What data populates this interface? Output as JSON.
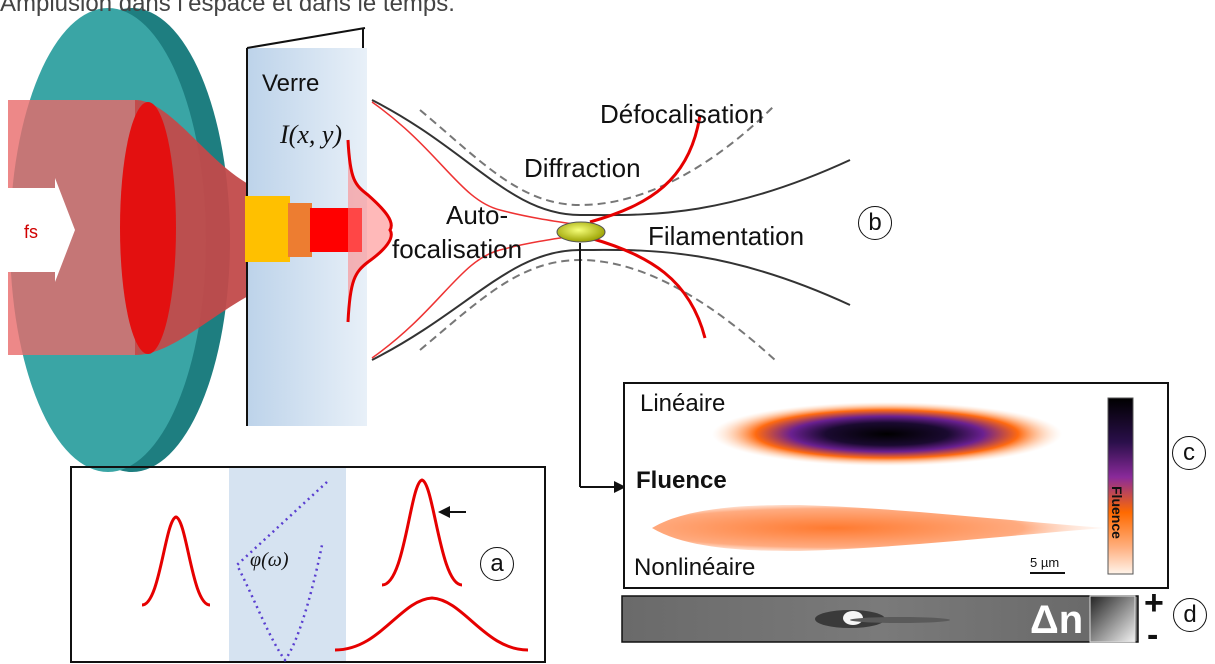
{
  "header_text": "Amplusion dans l’espace et dans le temps.",
  "pulse_label": "fs",
  "glass_label": "Verre",
  "intensity_label": "I(x, y)",
  "effects": {
    "defocus": "Défocalisation",
    "diffraction": "Diffraction",
    "selffocus_1": "Auto-",
    "selffocus_2": "focalisation",
    "filamentation": "Filamentation"
  },
  "panel_labels": {
    "a": "a",
    "b": "b",
    "c": "c",
    "d": "d"
  },
  "panel_a": {
    "phase_label": "φ(ω)"
  },
  "panel_c": {
    "top_label": "Linéaire",
    "middle_label": "Fluence",
    "bottom_label": "Nonlinéaire",
    "scalebar_label": "5 µm",
    "colorbar_label": "Fluence"
  },
  "panel_d": {
    "delta_n": "Δn",
    "plus": "+",
    "minus": "-"
  },
  "colors": {
    "lens": "#2e9c9c",
    "beam_red": "#e60000",
    "glass": "#c9dcef",
    "dotted": "#5a3fd0"
  }
}
